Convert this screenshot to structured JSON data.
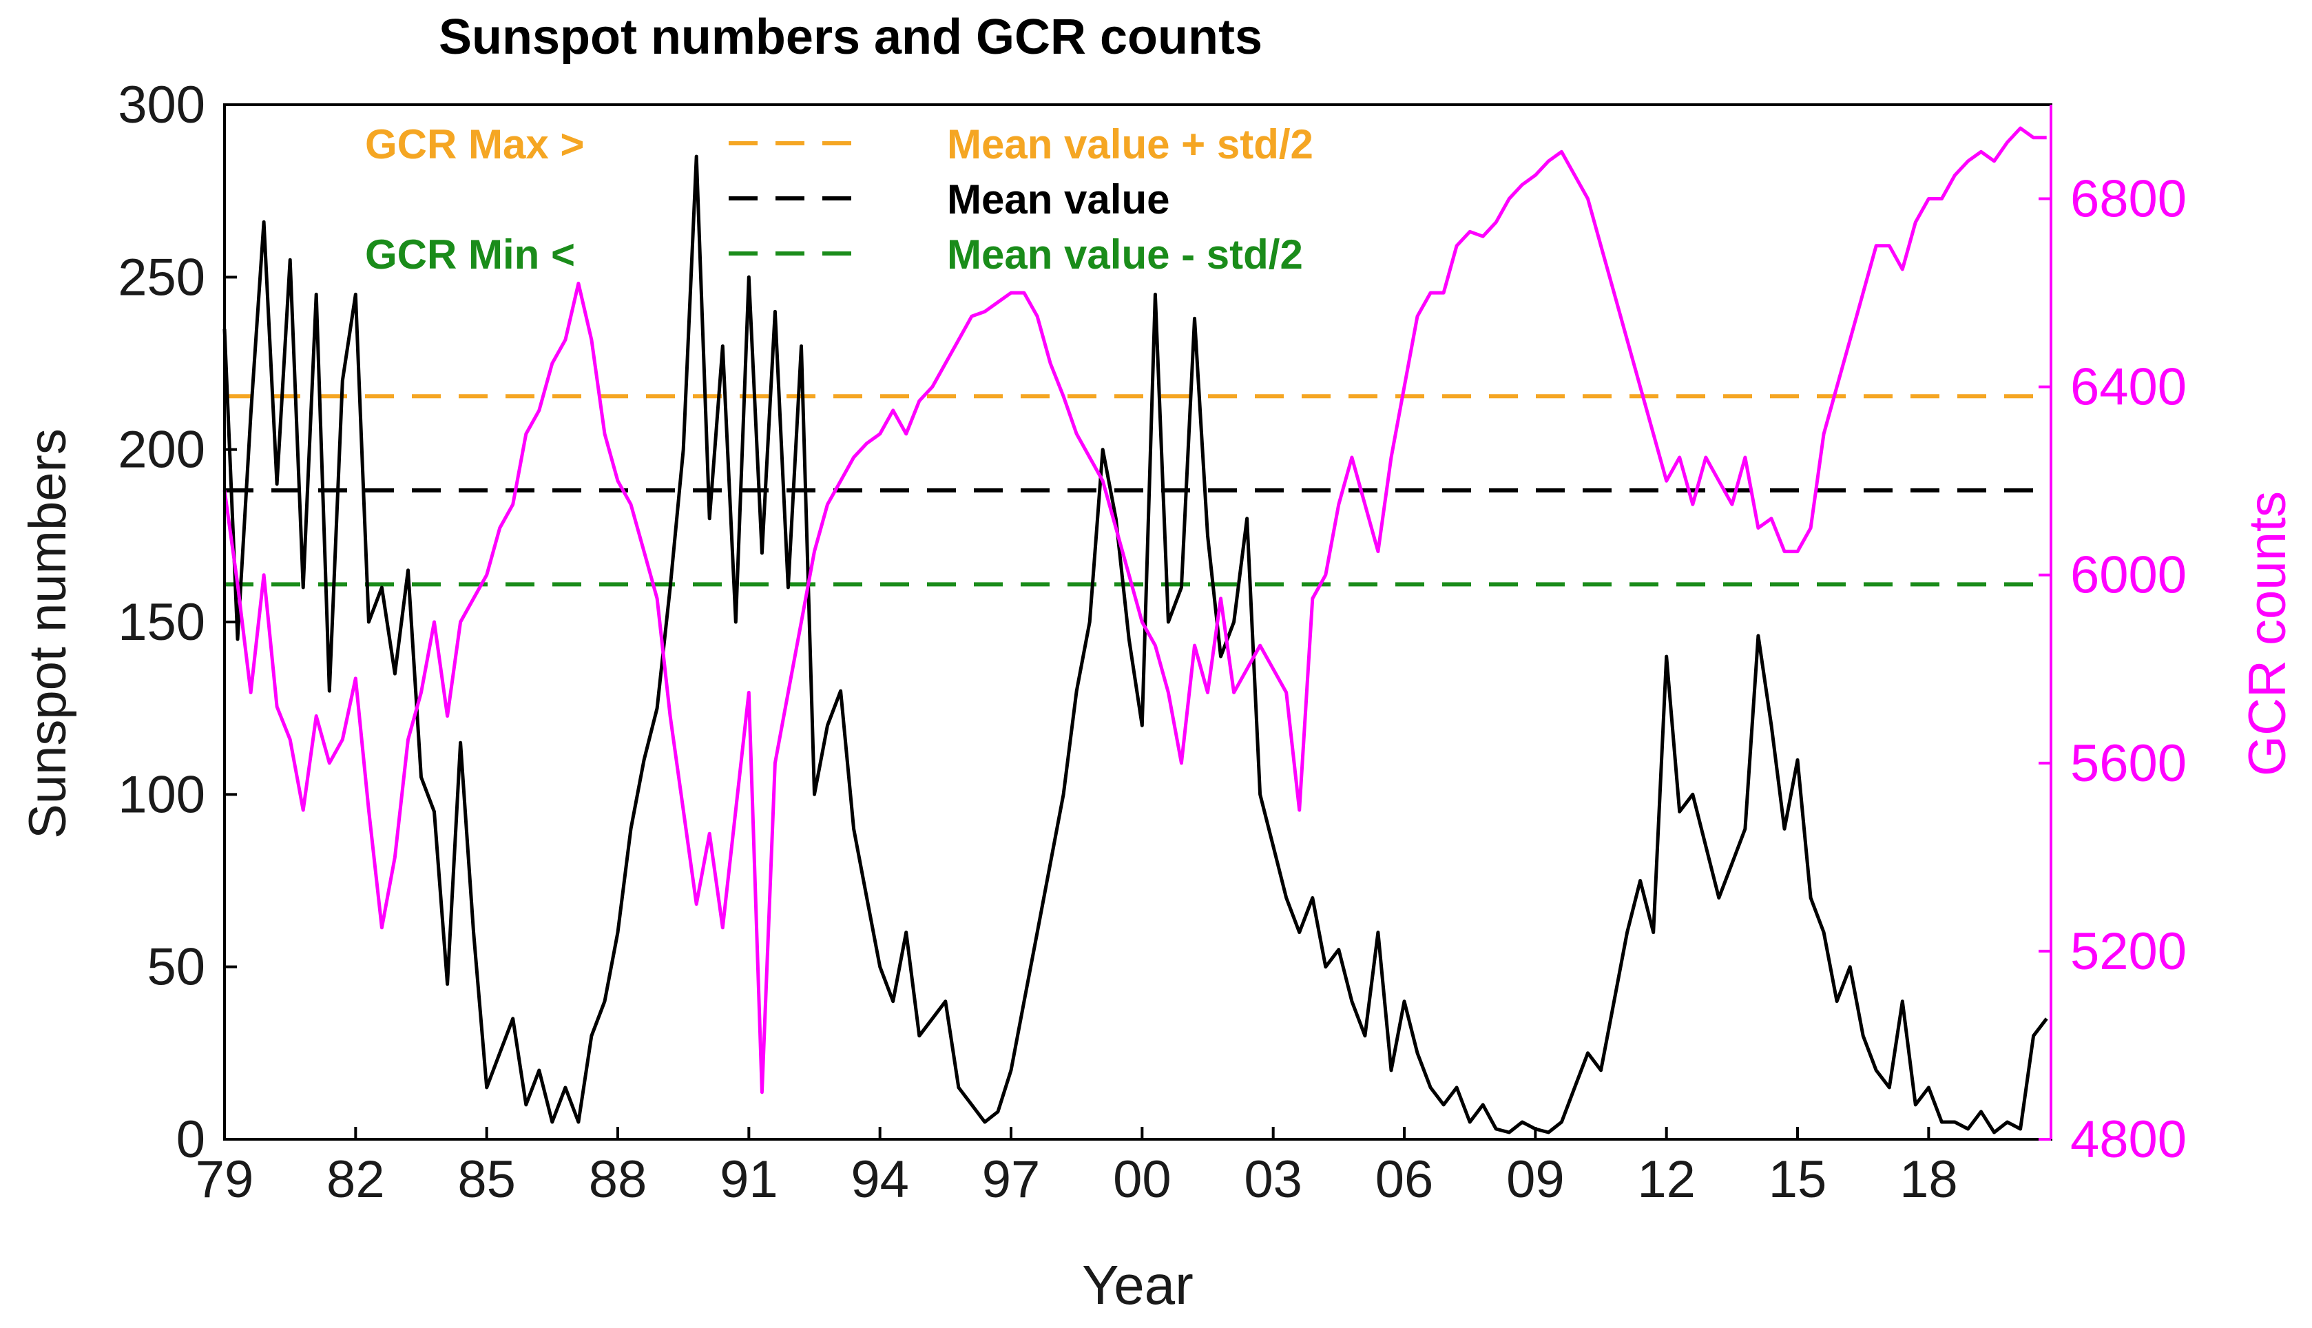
{
  "chart_data": {
    "type": "line",
    "title": "Sunspot numbers and GCR counts",
    "xlabel": "Year",
    "ylabel": "Sunspot numbers",
    "ylabel_right": "GCR counts",
    "xlim": [
      1979,
      2020.8
    ],
    "ylim": [
      0,
      300
    ],
    "ylim_right": [
      4800,
      7000
    ],
    "x_ticks": [
      {
        "value": 1979,
        "label": "79"
      },
      {
        "value": 1982,
        "label": "82"
      },
      {
        "value": 1985,
        "label": "85"
      },
      {
        "value": 1988,
        "label": "88"
      },
      {
        "value": 1991,
        "label": "91"
      },
      {
        "value": 1994,
        "label": "94"
      },
      {
        "value": 1997,
        "label": "97"
      },
      {
        "value": 2000,
        "label": "00"
      },
      {
        "value": 2003,
        "label": "03"
      },
      {
        "value": 2006,
        "label": "06"
      },
      {
        "value": 2009,
        "label": "09"
      },
      {
        "value": 2012,
        "label": "12"
      },
      {
        "value": 2015,
        "label": "15"
      },
      {
        "value": 2018,
        "label": "18"
      }
    ],
    "y_ticks": [
      0,
      50,
      100,
      150,
      200,
      250,
      300
    ],
    "y_ticks_right": [
      4800,
      5200,
      5600,
      6000,
      6400,
      6800
    ],
    "colors": {
      "sunspot": "#000000",
      "gcr": "#ff00ff",
      "gcr_max": "#f5a623",
      "mean": "#000000",
      "gcr_min": "#1a8c1a"
    },
    "reference_lines": [
      {
        "name": "GCR Max",
        "label_left": "GCR Max >",
        "label_right": "Mean value + std/2",
        "gcr_value": 6380,
        "color": "#f5a623"
      },
      {
        "name": "Mean",
        "label_left": "",
        "label_right": "Mean value",
        "gcr_value": 6180,
        "color": "#000000"
      },
      {
        "name": "GCR Min",
        "label_left": "GCR Min <",
        "label_right": "Mean value - std/2",
        "gcr_value": 5980,
        "color": "#1a8c1a"
      }
    ],
    "series": [
      {
        "name": "Sunspot numbers",
        "axis": "left",
        "color": "#000000",
        "x": [
          1979.0,
          1979.3,
          1979.6,
          1979.9,
          1980.2,
          1980.5,
          1980.8,
          1981.1,
          1981.4,
          1981.7,
          1982.0,
          1982.3,
          1982.6,
          1982.9,
          1983.2,
          1983.5,
          1983.8,
          1984.1,
          1984.4,
          1984.7,
          1985.0,
          1985.3,
          1985.6,
          1985.9,
          1986.2,
          1986.5,
          1986.8,
          1987.1,
          1987.4,
          1987.7,
          1988.0,
          1988.3,
          1988.6,
          1988.9,
          1989.2,
          1989.5,
          1989.8,
          1990.1,
          1990.4,
          1990.7,
          1991.0,
          1991.3,
          1991.6,
          1991.9,
          1992.2,
          1992.5,
          1992.8,
          1993.1,
          1993.4,
          1993.7,
          1994.0,
          1994.3,
          1994.6,
          1994.9,
          1995.2,
          1995.5,
          1995.8,
          1996.1,
          1996.4,
          1996.7,
          1997.0,
          1997.3,
          1997.6,
          1997.9,
          1998.2,
          1998.5,
          1998.8,
          1999.1,
          1999.4,
          1999.7,
          2000.0,
          2000.3,
          2000.6,
          2000.9,
          2001.2,
          2001.5,
          2001.8,
          2002.1,
          2002.4,
          2002.7,
          2003.0,
          2003.3,
          2003.6,
          2003.9,
          2004.2,
          2004.5,
          2004.8,
          2005.1,
          2005.4,
          2005.7,
          2006.0,
          2006.3,
          2006.6,
          2006.9,
          2007.2,
          2007.5,
          2007.8,
          2008.1,
          2008.4,
          2008.7,
          2009.0,
          2009.3,
          2009.6,
          2009.9,
          2010.2,
          2010.5,
          2010.8,
          2011.1,
          2011.4,
          2011.7,
          2012.0,
          2012.3,
          2012.6,
          2012.9,
          2013.2,
          2013.5,
          2013.8,
          2014.1,
          2014.4,
          2014.7,
          2015.0,
          2015.3,
          2015.6,
          2015.9,
          2016.2,
          2016.5,
          2016.8,
          2017.1,
          2017.4,
          2017.7,
          2018.0,
          2018.3,
          2018.6,
          2018.9,
          2019.2,
          2019.5,
          2019.8,
          2020.1,
          2020.4,
          2020.7
        ],
        "values": [
          235,
          145,
          210,
          266,
          190,
          255,
          160,
          245,
          130,
          220,
          245,
          150,
          160,
          135,
          165,
          105,
          95,
          45,
          115,
          60,
          15,
          25,
          35,
          10,
          20,
          5,
          15,
          5,
          30,
          40,
          60,
          90,
          110,
          125,
          160,
          200,
          285,
          180,
          230,
          150,
          250,
          170,
          240,
          160,
          230,
          100,
          120,
          130,
          90,
          70,
          50,
          40,
          60,
          30,
          35,
          40,
          15,
          10,
          5,
          8,
          20,
          40,
          60,
          80,
          100,
          130,
          150,
          200,
          180,
          145,
          120,
          245,
          150,
          160,
          238,
          175,
          140,
          150,
          180,
          100,
          85,
          70,
          60,
          70,
          50,
          55,
          40,
          30,
          60,
          20,
          40,
          25,
          15,
          10,
          15,
          5,
          10,
          3,
          2,
          5,
          3,
          2,
          5,
          15,
          25,
          20,
          40,
          60,
          75,
          60,
          140,
          95,
          100,
          85,
          70,
          80,
          90,
          146,
          120,
          90,
          110,
          70,
          60,
          40,
          50,
          30,
          20,
          15,
          40,
          10,
          15,
          5,
          5,
          3,
          8,
          2,
          5,
          3,
          30,
          35
        ]
      },
      {
        "name": "GCR counts",
        "axis": "right",
        "color": "#ff00ff",
        "x": [
          1979.0,
          1979.3,
          1979.6,
          1979.9,
          1980.2,
          1980.5,
          1980.8,
          1981.1,
          1981.4,
          1981.7,
          1982.0,
          1982.3,
          1982.6,
          1982.9,
          1983.2,
          1983.5,
          1983.8,
          1984.1,
          1984.4,
          1984.7,
          1985.0,
          1985.3,
          1985.6,
          1985.9,
          1986.2,
          1986.5,
          1986.8,
          1987.1,
          1987.4,
          1987.7,
          1988.0,
          1988.3,
          1988.6,
          1988.9,
          1989.2,
          1989.5,
          1989.8,
          1990.1,
          1990.4,
          1990.7,
          1991.0,
          1991.3,
          1991.6,
          1991.9,
          1992.2,
          1992.5,
          1992.8,
          1993.1,
          1993.4,
          1993.7,
          1994.0,
          1994.3,
          1994.6,
          1994.9,
          1995.2,
          1995.5,
          1995.8,
          1996.1,
          1996.4,
          1996.7,
          1997.0,
          1997.3,
          1997.6,
          1997.9,
          1998.2,
          1998.5,
          1998.8,
          1999.1,
          1999.4,
          1999.7,
          2000.0,
          2000.3,
          2000.6,
          2000.9,
          2001.2,
          2001.5,
          2001.8,
          2002.1,
          2002.4,
          2002.7,
          2003.0,
          2003.3,
          2003.6,
          2003.9,
          2004.2,
          2004.5,
          2004.8,
          2005.1,
          2005.4,
          2005.7,
          2006.0,
          2006.3,
          2006.6,
          2006.9,
          2007.2,
          2007.5,
          2007.8,
          2008.1,
          2008.4,
          2008.7,
          2009.0,
          2009.3,
          2009.6,
          2009.9,
          2010.2,
          2010.5,
          2010.8,
          2011.1,
          2011.4,
          2011.7,
          2012.0,
          2012.3,
          2012.6,
          2012.9,
          2013.2,
          2013.5,
          2013.8,
          2014.1,
          2014.4,
          2014.7,
          2015.0,
          2015.3,
          2015.6,
          2015.9,
          2016.2,
          2016.5,
          2016.8,
          2017.1,
          2017.4,
          2017.7,
          2018.0,
          2018.3,
          2018.6,
          2018.9,
          2019.2,
          2019.5,
          2019.8,
          2020.1,
          2020.4,
          2020.7
        ],
        "values": [
          6180,
          5980,
          5750,
          6000,
          5720,
          5650,
          5500,
          5700,
          5600,
          5650,
          5780,
          5500,
          5250,
          5400,
          5650,
          5750,
          5900,
          5700,
          5900,
          5950,
          6000,
          6100,
          6150,
          6300,
          6350,
          6450,
          6500,
          6620,
          6500,
          6300,
          6200,
          6150,
          6050,
          5950,
          5700,
          5500,
          5300,
          5450,
          5250,
          5500,
          5750,
          4900,
          5600,
          5750,
          5900,
          6050,
          6150,
          6200,
          6250,
          6280,
          6300,
          6350,
          6300,
          6370,
          6400,
          6450,
          6500,
          6550,
          6560,
          6580,
          6600,
          6600,
          6550,
          6450,
          6380,
          6300,
          6250,
          6200,
          6100,
          6000,
          5900,
          5850,
          5750,
          5600,
          5850,
          5750,
          5950,
          5750,
          5800,
          5850,
          5800,
          5750,
          5500,
          5950,
          6000,
          6150,
          6250,
          6150,
          6050,
          6250,
          6400,
          6550,
          6600,
          6600,
          6700,
          6730,
          6720,
          6750,
          6800,
          6830,
          6850,
          6880,
          6900,
          6850,
          6800,
          6700,
          6600,
          6500,
          6400,
          6300,
          6200,
          6250,
          6150,
          6250,
          6200,
          6150,
          6250,
          6100,
          6120,
          6050,
          6050,
          6100,
          6300,
          6400,
          6500,
          6600,
          6700,
          6700,
          6650,
          6750,
          6800,
          6800,
          6850,
          6880,
          6900,
          6880,
          6920,
          6950,
          6930,
          6930
        ]
      }
    ]
  }
}
